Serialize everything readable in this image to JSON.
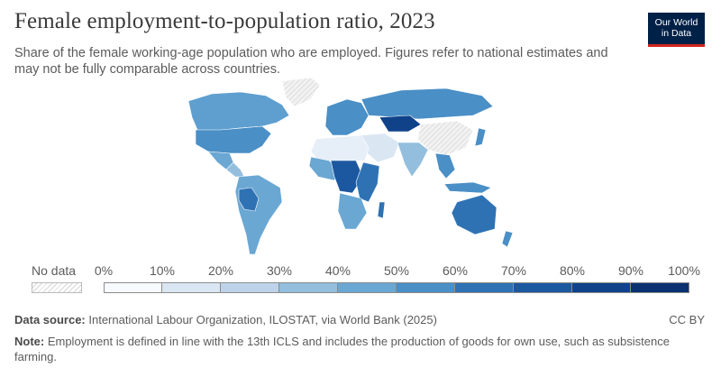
{
  "header": {
    "title": "Female employment-to-population ratio, 2023",
    "subtitle": "Share of the female working-age population who are employed. Figures refer to national estimates and may not be fully comparable across countries."
  },
  "logo": {
    "line1": "Our World",
    "line2": "in Data",
    "bg_color": "#002147",
    "accent_color": "#ce261e"
  },
  "legend": {
    "no_data_label": "No data",
    "ticks": [
      "0%",
      "10%",
      "20%",
      "30%",
      "40%",
      "50%",
      "60%",
      "70%",
      "80%",
      "90%",
      "100%"
    ],
    "bin_colors": [
      "#f7fbff",
      "#dbe6f3",
      "#bed3ea",
      "#93bedd",
      "#6aa7d3",
      "#4a8fc6",
      "#2f72b4",
      "#1b58a0",
      "#0f4289",
      "#0a3170"
    ]
  },
  "footer": {
    "source_label": "Data source:",
    "source_text": " International Labour Organization, ILOSTAT, via World Bank (2025)",
    "license": "CC BY",
    "note_label": "Note:",
    "note_text": " Employment is defined in line with the 13th ICLS and includes the production of goods for own use, such as subsistence farming."
  },
  "map_colors": {
    "north_america": "#5e9fd0",
    "usa": "#4a8fc6",
    "greenland": "#dcdcdc",
    "mexico": "#6aa7d3",
    "central_america": "#93bedd",
    "south_america": "#6aa7d3",
    "bolivia_peru": "#2f72b4",
    "europe": "#4a8fc6",
    "russia": "#4a8fc6",
    "kazakhstan": "#0f4289",
    "middle_east": "#dbe6f3",
    "north_africa": "#e6eef7",
    "west_africa": "#6aa7d3",
    "central_africa": "#1b58a0",
    "east_africa": "#2f72b4",
    "southern_africa": "#6aa7d3",
    "south_asia": "#93bedd",
    "china": "#e8e8e8",
    "southeast_asia": "#4a8fc6",
    "indonesia": "#4a8fc6",
    "australia": "#2f72b4",
    "japan": "#4a8fc6",
    "nodata_fill": "#ececec"
  }
}
